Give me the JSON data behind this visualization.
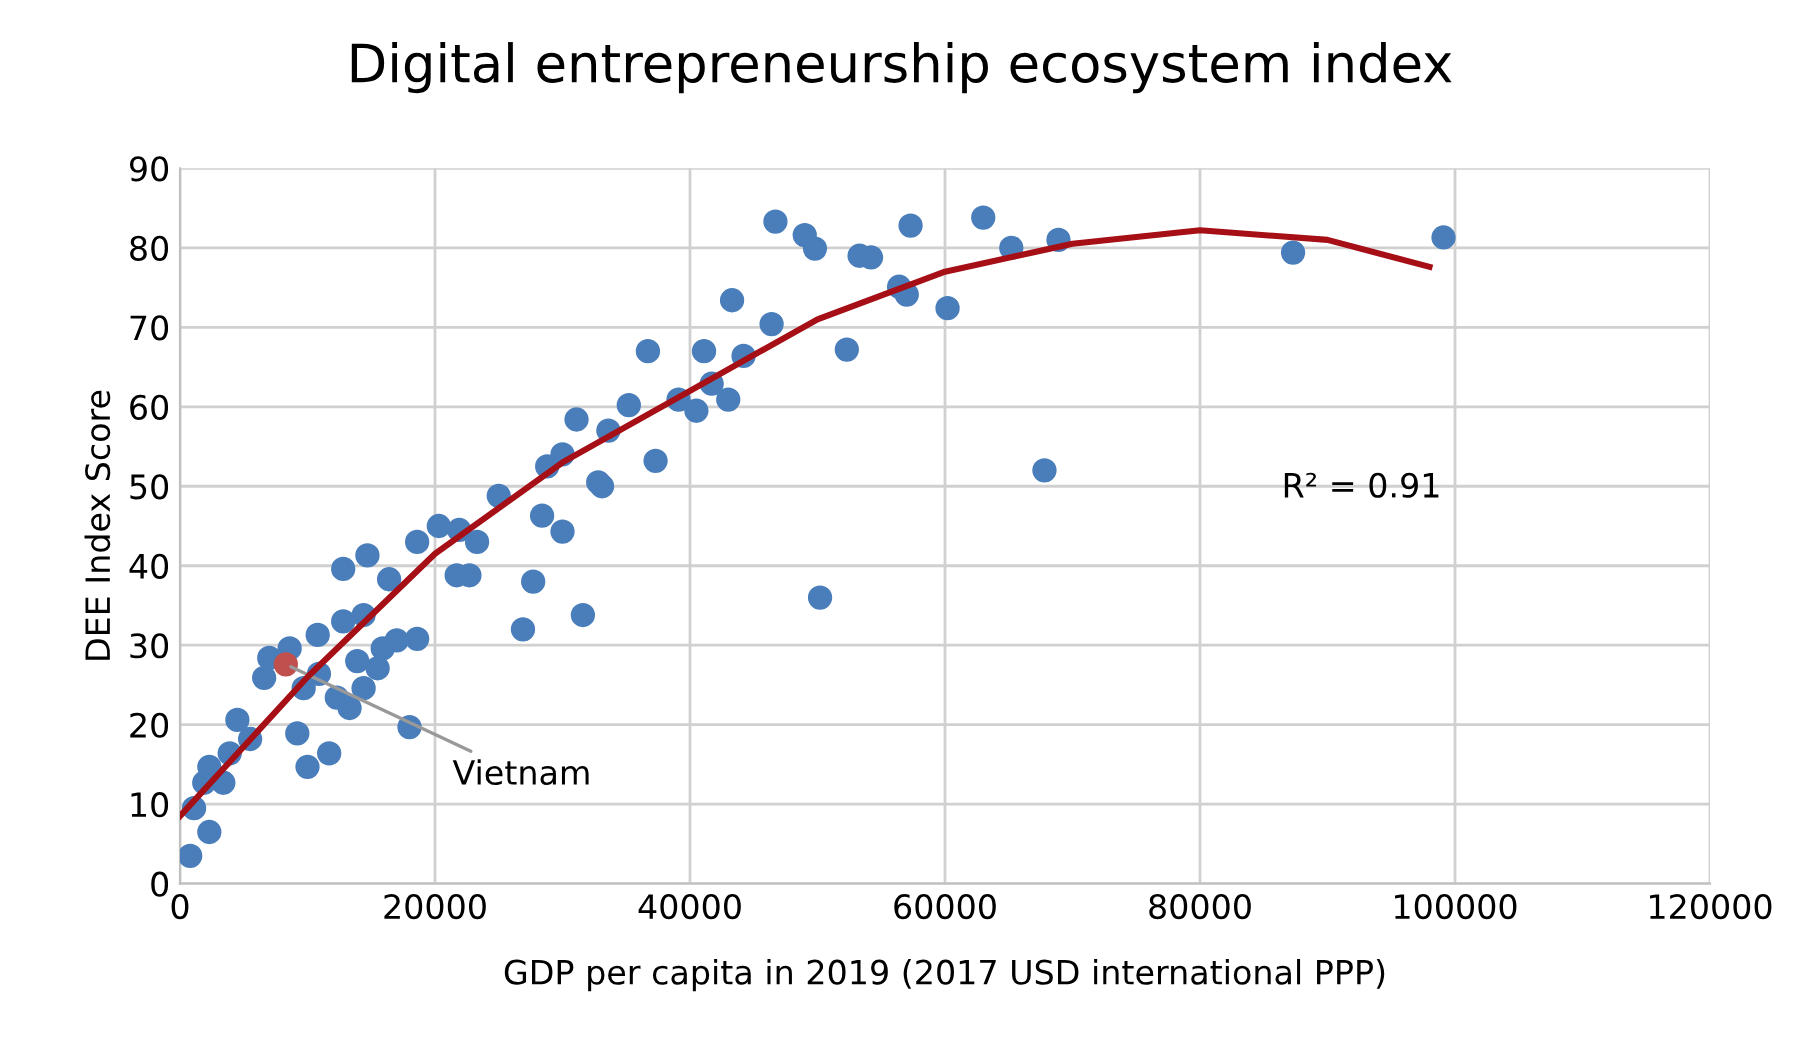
{
  "chart_data": {
    "type": "scatter",
    "title": "Digital entrepreneurship ecosystem index",
    "xlabel": "GDP per capita in 2019 (2017 USD international PPP)",
    "ylabel": "DEE Index Score",
    "xlim": [
      0,
      120000
    ],
    "ylim": [
      0,
      90
    ],
    "xticks": [
      0,
      20000,
      40000,
      60000,
      80000,
      100000,
      120000
    ],
    "yticks": [
      0,
      10,
      20,
      30,
      40,
      50,
      60,
      70,
      80,
      90
    ],
    "grid": true,
    "marker": "circle",
    "series": [
      {
        "color": "#4a7ebb",
        "x": [
          46700,
          49000,
          49800,
          53300,
          54200,
          57300,
          63000,
          65200,
          68900,
          87300,
          99100,
          43300,
          46400,
          56400,
          57000,
          60200,
          36700,
          41100,
          44200,
          52300,
          35200,
          33600,
          33100,
          39100,
          40500,
          41700,
          43000,
          37300,
          67800,
          50200,
          31100,
          28800,
          30000,
          25000,
          32800,
          28400,
          30000,
          27700,
          26900,
          31600,
          20300,
          21900,
          23300,
          22700,
          18600,
          16400,
          14700,
          12800,
          18600,
          18000,
          14400,
          12800,
          10800,
          8600,
          7000,
          6600,
          13900,
          15900,
          12300,
          14400,
          13300,
          9200,
          10000,
          11700,
          4500,
          5500,
          3900,
          2300,
          1900,
          3400,
          1100,
          2300,
          800,
          10900,
          9700,
          15500,
          17000,
          21700
        ],
        "values": [
          83.3,
          81.6,
          79.9,
          79,
          78.8,
          82.8,
          83.8,
          80,
          81,
          79.4,
          81.3,
          73.4,
          70.4,
          75.1,
          74.1,
          72.4,
          67,
          67,
          66.4,
          67.2,
          60.2,
          57,
          50,
          60.9,
          59.5,
          62.9,
          60.9,
          53.2,
          52,
          36,
          58.4,
          52.5,
          54,
          48.8,
          50.5,
          46.3,
          44.3,
          38,
          32,
          33.8,
          45,
          44.5,
          43,
          38.8,
          43,
          38.3,
          41.3,
          39.6,
          30.8,
          19.7,
          33.8,
          33,
          31.3,
          29.6,
          28.4,
          25.9,
          28,
          29.6,
          23.4,
          24.6,
          22.1,
          18.9,
          14.7,
          16.4,
          20.6,
          18.2,
          16.4,
          14.7,
          12.7,
          12.7,
          9.5,
          6.5,
          3.5,
          26.4,
          24.6,
          27.1,
          30.6,
          38.8
        ]
      },
      {
        "color": "#c0504d",
        "x": [
          8300
        ],
        "values": [
          27.6
        ]
      },
      {
        "type": "line",
        "color": "#a50f15",
        "marker": "none",
        "line_style": "solid",
        "x": [
          0,
          10000,
          20000,
          30000,
          40000,
          50000,
          60000,
          70000,
          80000,
          90000,
          98000
        ],
        "values": [
          8.5,
          26,
          41.5,
          53,
          62,
          71,
          77,
          80.5,
          82.2,
          81,
          77.6
        ]
      }
    ],
    "annotations": [
      {
        "text": "Vietnam",
        "x": 8300,
        "y": 27.6
      },
      "R² = 0.91"
    ]
  }
}
